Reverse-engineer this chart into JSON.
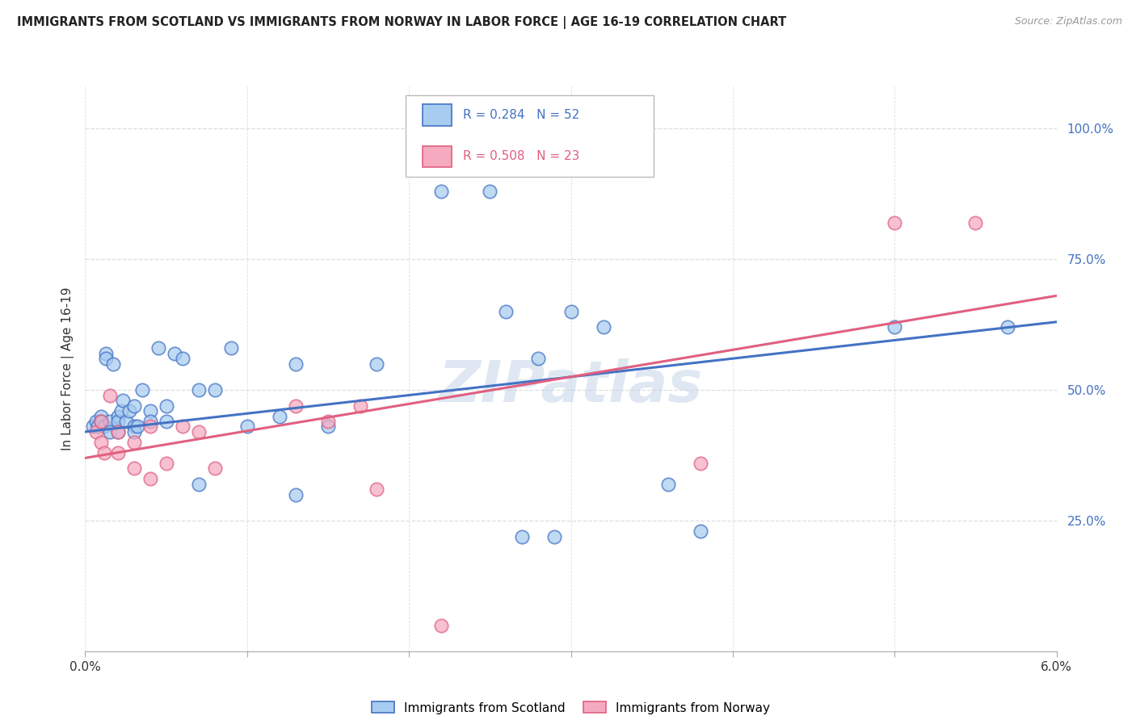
{
  "title": "IMMIGRANTS FROM SCOTLAND VS IMMIGRANTS FROM NORWAY IN LABOR FORCE | AGE 16-19 CORRELATION CHART",
  "source": "Source: ZipAtlas.com",
  "ylabel": "In Labor Force | Age 16-19",
  "ylabel_right_ticks": [
    "100.0%",
    "75.0%",
    "50.0%",
    "25.0%"
  ],
  "ylabel_right_vals": [
    1.0,
    0.75,
    0.5,
    0.25
  ],
  "xlim": [
    0.0,
    0.06
  ],
  "ylim": [
    0.0,
    1.08
  ],
  "legend_r1": "R = 0.284",
  "legend_n1": "N = 52",
  "legend_r2": "R = 0.508",
  "legend_n2": "N = 23",
  "legend_label1": "Immigrants from Scotland",
  "legend_label2": "Immigrants from Norway",
  "color_scotland": "#a8ccf0",
  "color_norway": "#f5aac0",
  "color_line_scotland": "#4472c4",
  "color_line_norway": "#e06080",
  "watermark": "ZIPatlas",
  "scotland_x": [
    0.0005,
    0.0007,
    0.0008,
    0.001,
    0.001,
    0.0012,
    0.0013,
    0.0013,
    0.0015,
    0.0015,
    0.0017,
    0.002,
    0.002,
    0.002,
    0.0022,
    0.0023,
    0.0025,
    0.0027,
    0.003,
    0.003,
    0.003,
    0.0032,
    0.0035,
    0.004,
    0.004,
    0.0045,
    0.005,
    0.005,
    0.0055,
    0.006,
    0.007,
    0.007,
    0.008,
    0.009,
    0.01,
    0.012,
    0.013,
    0.013,
    0.015,
    0.018,
    0.022,
    0.025,
    0.026,
    0.027,
    0.028,
    0.029,
    0.03,
    0.032,
    0.036,
    0.038,
    0.05,
    0.057
  ],
  "scotland_y": [
    0.43,
    0.44,
    0.43,
    0.45,
    0.44,
    0.43,
    0.57,
    0.56,
    0.44,
    0.42,
    0.55,
    0.45,
    0.44,
    0.42,
    0.46,
    0.48,
    0.44,
    0.46,
    0.47,
    0.43,
    0.42,
    0.43,
    0.5,
    0.46,
    0.44,
    0.58,
    0.47,
    0.44,
    0.57,
    0.56,
    0.5,
    0.32,
    0.5,
    0.58,
    0.43,
    0.45,
    0.55,
    0.3,
    0.43,
    0.55,
    0.88,
    0.88,
    0.65,
    0.22,
    0.56,
    0.22,
    0.65,
    0.62,
    0.32,
    0.23,
    0.62,
    0.62
  ],
  "norway_x": [
    0.0007,
    0.001,
    0.001,
    0.0012,
    0.0015,
    0.002,
    0.002,
    0.003,
    0.003,
    0.004,
    0.004,
    0.005,
    0.006,
    0.007,
    0.008,
    0.013,
    0.015,
    0.017,
    0.018,
    0.022,
    0.038,
    0.05,
    0.055
  ],
  "norway_y": [
    0.42,
    0.44,
    0.4,
    0.38,
    0.49,
    0.38,
    0.42,
    0.4,
    0.35,
    0.33,
    0.43,
    0.36,
    0.43,
    0.42,
    0.35,
    0.47,
    0.44,
    0.47,
    0.31,
    0.05,
    0.36,
    0.82,
    0.82
  ],
  "grid_color": "#dddddd",
  "background_color": "#ffffff"
}
